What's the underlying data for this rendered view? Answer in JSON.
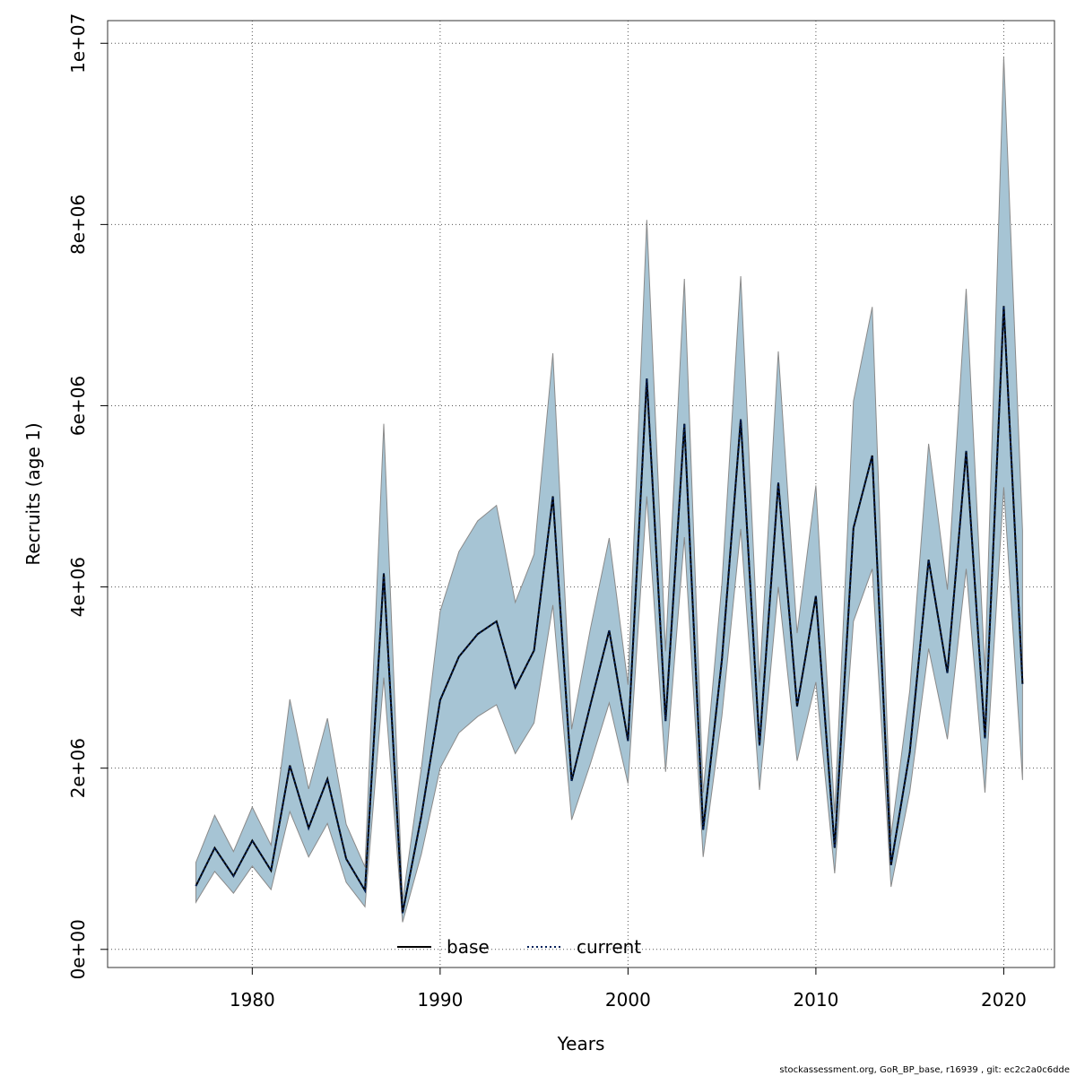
{
  "chart_data": {
    "type": "line",
    "title": "",
    "xlabel": "Years",
    "ylabel": "Recruits (age 1)",
    "xlim": [
      1972.3,
      2022.7
    ],
    "ylim": [
      -200000,
      10250000
    ],
    "x_ticks": [
      1980,
      1990,
      2000,
      2010,
      2020
    ],
    "x_tick_labels": [
      "1980",
      "1990",
      "2000",
      "2010",
      "2020"
    ],
    "y_ticks": [
      0,
      2000000,
      4000000,
      6000000,
      8000000,
      10000000
    ],
    "y_tick_labels": [
      "0e+00",
      "2e+06",
      "4e+06",
      "6e+06",
      "8e+06",
      "1e+07"
    ],
    "grid": true,
    "legend_position": "bottom-center",
    "legend": [
      {
        "label": "base",
        "style": "solid",
        "color": "#000000"
      },
      {
        "label": "current",
        "style": "dotted",
        "color": "#00205a"
      }
    ],
    "band_color": "#a6c4d4",
    "x": [
      1977,
      1978,
      1979,
      1980,
      1981,
      1982,
      1983,
      1984,
      1985,
      1986,
      1987,
      1988,
      1989,
      1990,
      1991,
      1992,
      1993,
      1994,
      1995,
      1996,
      1997,
      1998,
      1999,
      2000,
      2001,
      2002,
      2003,
      2004,
      2005,
      2006,
      2007,
      2008,
      2009,
      2010,
      2011,
      2012,
      2013,
      2014,
      2015,
      2016,
      2017,
      2018,
      2019,
      2020,
      2021
    ],
    "series": [
      {
        "name": "base",
        "values": [
          700000,
          1120000,
          810000,
          1200000,
          870000,
          2030000,
          1340000,
          1880000,
          1000000,
          650000,
          4150000,
          400000,
          1470000,
          2750000,
          3230000,
          3480000,
          3620000,
          2890000,
          3300000,
          5000000,
          1860000,
          2700000,
          3520000,
          2300000,
          6300000,
          2520000,
          5800000,
          1320000,
          3200000,
          5850000,
          2250000,
          5150000,
          2680000,
          3900000,
          1120000,
          4650000,
          5450000,
          930000,
          2180000,
          4300000,
          3050000,
          5500000,
          2330000,
          7100000,
          2930000
        ]
      },
      {
        "name": "current",
        "values": [
          700000,
          1120000,
          810000,
          1200000,
          870000,
          2030000,
          1340000,
          1880000,
          1000000,
          650000,
          4150000,
          400000,
          1470000,
          2750000,
          3230000,
          3480000,
          3620000,
          2890000,
          3300000,
          5000000,
          1860000,
          2700000,
          3520000,
          2300000,
          6300000,
          2520000,
          5800000,
          1320000,
          3200000,
          5850000,
          2250000,
          5150000,
          2680000,
          3900000,
          1120000,
          4650000,
          5450000,
          930000,
          2180000,
          4300000,
          3050000,
          5500000,
          2330000,
          7100000,
          2930000
        ]
      }
    ],
    "band_lower": [
      520000,
      860000,
      620000,
      920000,
      660000,
      1520000,
      1020000,
      1390000,
      740000,
      470000,
      3000000,
      300000,
      1050000,
      2000000,
      2390000,
      2570000,
      2700000,
      2160000,
      2500000,
      3800000,
      1430000,
      2050000,
      2720000,
      1830000,
      5000000,
      1960000,
      4550000,
      1020000,
      2580000,
      4640000,
      1760000,
      4000000,
      2080000,
      2950000,
      840000,
      3620000,
      4200000,
      690000,
      1740000,
      3320000,
      2320000,
      4200000,
      1730000,
      5100000,
      1870000
    ],
    "band_upper": [
      960000,
      1480000,
      1080000,
      1570000,
      1150000,
      2760000,
      1770000,
      2550000,
      1380000,
      910000,
      5800000,
      540000,
      2000000,
      3730000,
      4390000,
      4730000,
      4900000,
      3830000,
      4360000,
      6580000,
      2430000,
      3540000,
      4540000,
      2920000,
      8050000,
      3290000,
      7400000,
      1730000,
      4040000,
      7430000,
      2950000,
      6600000,
      3490000,
      5120000,
      1500000,
      6050000,
      7090000,
      1250000,
      2860000,
      5580000,
      3970000,
      7290000,
      3060000,
      9850000,
      4620000
    ]
  },
  "footer": "stockassessment.org, GoR_BP_base, r16939 , git: ec2c2a0c6dde"
}
